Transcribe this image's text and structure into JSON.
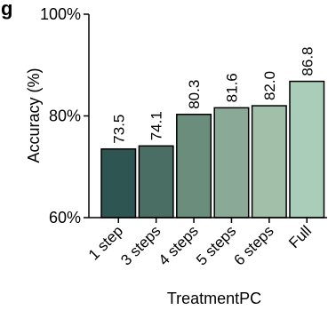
{
  "chart_data": {
    "type": "bar",
    "panel_label": "g",
    "xlabel": "TreatmentPC",
    "ylabel": "Accuracy (%)",
    "ylim": [
      60,
      100
    ],
    "yticks": [
      "60%",
      "80%",
      "100%"
    ],
    "categories": [
      "1 step",
      "3 steps",
      "4 steps",
      "5 steps",
      "6 steps",
      "Full"
    ],
    "values": [
      73.5,
      74.1,
      80.3,
      81.6,
      82.0,
      86.8
    ],
    "value_labels": [
      "73.5",
      "74.1",
      "80.3",
      "81.6",
      "82.0",
      "86.8"
    ],
    "colors": [
      "#2e5552",
      "#4a6e64",
      "#6b8e7c",
      "#8aa996",
      "#a2bfaa",
      "#a9cdb8"
    ],
    "grid": false
  }
}
